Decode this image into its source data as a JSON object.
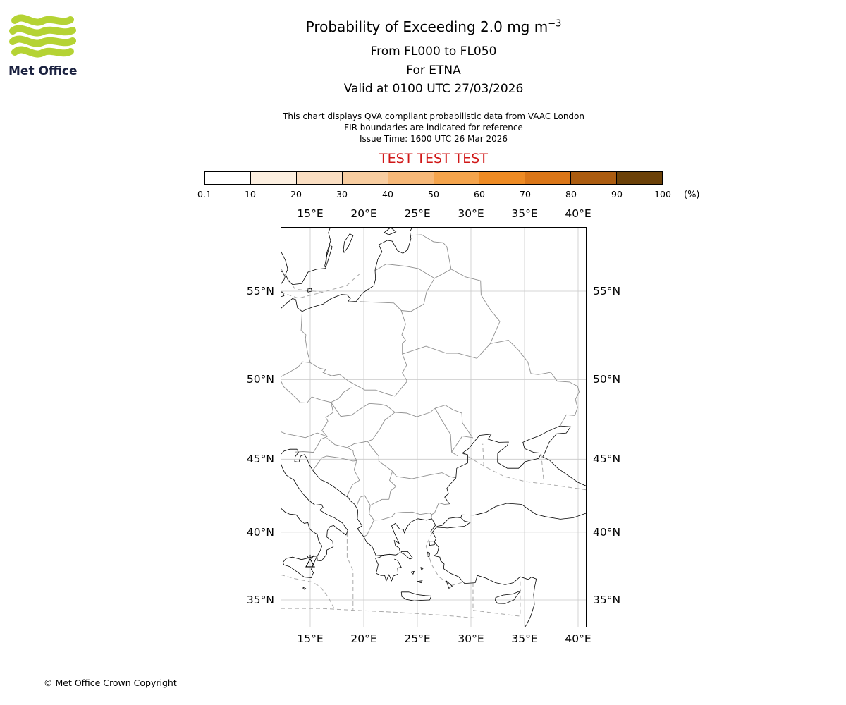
{
  "logo": {
    "text": "Met Office"
  },
  "header": {
    "title_prefix": "Probability of Exceeding 2.0 mg m",
    "title_sup": "−3",
    "subtitle_fl": "From FL000 to FL050",
    "subtitle_volcano": "For ETNA",
    "subtitle_valid": "Valid at 0100 UTC 27/03/2026",
    "note_line1": "This chart displays QVA compliant probabilistic data from VAAC London",
    "note_line2": "FIR boundaries are indicated for reference",
    "note_line3": "Issue Time: 1600 UTC 26 Mar 2026",
    "test_banner": "TEST TEST TEST"
  },
  "colorbar": {
    "tick_labels": [
      "0.1",
      "10",
      "20",
      "30",
      "40",
      "50",
      "60",
      "70",
      "80",
      "90",
      "100"
    ],
    "unit_label": "(%)",
    "segment_colors": [
      "#ffffff",
      "#fcefe0",
      "#fadec2",
      "#f8cda0",
      "#f6b878",
      "#f4a44c",
      "#ee8b24",
      "#da7618",
      "#ab5c10",
      "#6b4108"
    ]
  },
  "map": {
    "lon_labels": [
      "15°E",
      "20°E",
      "25°E",
      "30°E",
      "35°E",
      "40°E"
    ],
    "lat_labels": [
      "55°N",
      "50°N",
      "45°N",
      "40°N",
      "35°N"
    ],
    "marker_icon": "volcano-eruption-icon"
  },
  "footer": {
    "copyright": "© Met Office Crown Copyright"
  },
  "colors": {
    "test_red": "#d01717",
    "logo_green": "#b5d334",
    "logo_navy": "#1b2240"
  }
}
